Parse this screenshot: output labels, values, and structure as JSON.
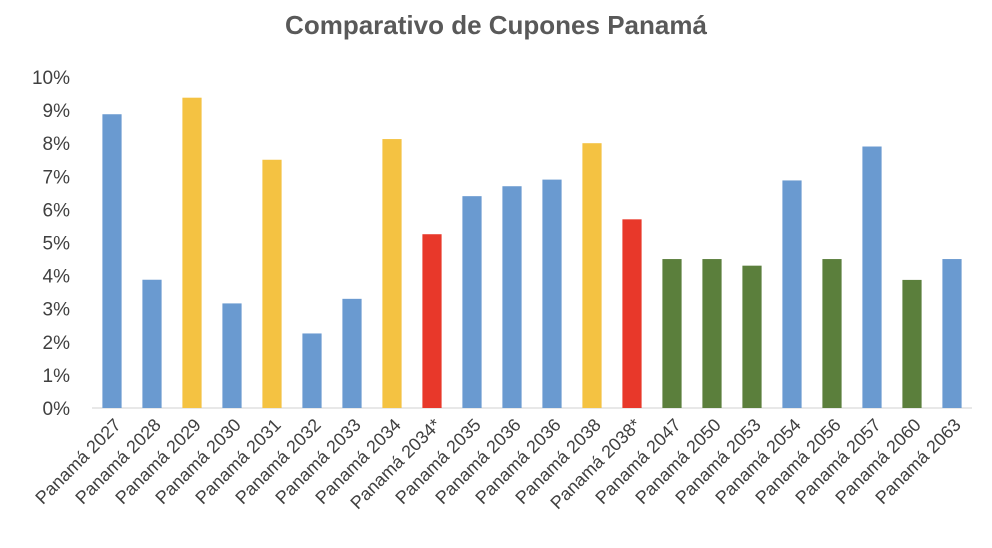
{
  "chart_data": {
    "type": "bar",
    "title": "Comparativo de Cupones Panamá",
    "xlabel": "",
    "ylabel": "",
    "ylim": [
      0,
      10
    ],
    "yticks": [
      "0%",
      "1%",
      "2%",
      "3%",
      "4%",
      "5%",
      "6%",
      "7%",
      "8%",
      "9%",
      "10%"
    ],
    "grid": false,
    "legend": "none",
    "categories": [
      "Panamá 2027",
      "Panamá 2028",
      "Panamá 2029",
      "Panamá 2030",
      "Panamá 2031",
      "Panamá 2032",
      "Panamá 2033",
      "Panamá 2034",
      "Panamá 2034*",
      "Panamá 2035",
      "Panamá 2036",
      "Panamá 2036",
      "Panamá 2038",
      "Panamá 2038*",
      "Panamá 2047",
      "Panamá 2050",
      "Panamá 2053",
      "Panamá 2054",
      "Panamá 2056",
      "Panamá 2057",
      "Panamá 2060",
      "Panamá 2063"
    ],
    "values": [
      8.875,
      3.875,
      9.375,
      3.16,
      7.5,
      2.252,
      3.298,
      8.125,
      5.25,
      6.4,
      6.7,
      6.9,
      8.0,
      5.7,
      4.5,
      4.5,
      4.3,
      6.875,
      4.5,
      7.9,
      3.87,
      4.5
    ],
    "bar_colors": [
      "#6A9AD0",
      "#6A9AD0",
      "#F4C242",
      "#6A9AD0",
      "#F4C242",
      "#6A9AD0",
      "#6A9AD0",
      "#F4C242",
      "#E8382A",
      "#6A9AD0",
      "#6A9AD0",
      "#6A9AD0",
      "#F4C242",
      "#E8382A",
      "#5B7F3C",
      "#5B7F3C",
      "#5B7F3C",
      "#6A9AD0",
      "#5B7F3C",
      "#6A9AD0",
      "#5B7F3C",
      "#6A9AD0"
    ]
  }
}
